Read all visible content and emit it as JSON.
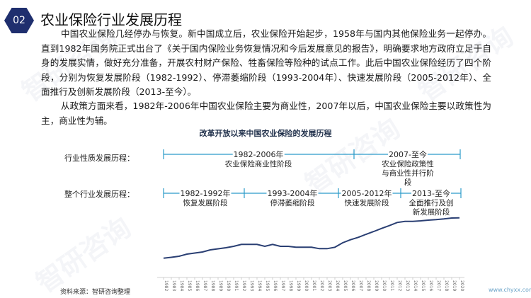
{
  "section_number": "02",
  "title": "农业保险行业发展历程",
  "paragraphs": [
    "中国农业保险几经停办与恢复。新中国成立后，农业保险开始起步，1958年与国内其他保险业务一起停办。直到1982年国务院正式出台了《关于国内保险业务恢复情况和今后发展意见的报告》，明确要求地方政府立足于自身的发展实情，做好充分准备，开展农村财产保险、牲畜保险等险种的试点工作。此后中国农业保险经历了四个阶段，分别为恢复发展阶段（1982-1992）、停滞萎缩阶段（1993-2004年）、快速发展阶段（2005-2012年）、全面推行及创新发展阶段（2013-至今）。",
    "从政策方面来看，1982年-2006年中国农业保险主要为商业性，2007年以后，中国农业保险主要以政策性为主，商业性为辅。"
  ],
  "timeline": {
    "nature_label": "行业性质发展历程：",
    "nature_stages": [
      {
        "period": "1982-2006年",
        "name": "农业保险商业性阶段"
      },
      {
        "period": "2007-至今",
        "name": "农业保险政策性与商业性并行阶段"
      }
    ],
    "industry_label": "整个行业发展历程：",
    "industry_stages": [
      {
        "period": "1982-1992年",
        "name": "恢复发展阶段"
      },
      {
        "period": "1993-2004年",
        "name": "停滞萎缩阶段"
      },
      {
        "period": "2005-2012年",
        "name": "快速发展阶段"
      },
      {
        "period": "2013-至今",
        "name": "全面推行及创新发展阶段"
      }
    ]
  },
  "colors": {
    "accent": "#1f2f6e",
    "timeline": "#2b9bc9",
    "line": "#2a3f73"
  },
  "chart_data": {
    "type": "line",
    "title": "改革开放以来中国农业保险的发展历程",
    "xlabel": "",
    "ylabel": "",
    "grid": false,
    "y_axis_shown": false,
    "x": [
      1982,
      1983,
      1984,
      1985,
      1986,
      1987,
      1988,
      1989,
      1990,
      1991,
      1992,
      1993,
      1994,
      1995,
      1996,
      1997,
      1998,
      1999,
      2000,
      2001,
      2002,
      2003,
      2004,
      2005,
      2006,
      2007,
      2008,
      2009,
      2010,
      2011,
      2012,
      2013,
      2014,
      2015,
      2016,
      2017,
      2018,
      2019,
      2020
    ],
    "values": [
      27.3,
      28.5,
      30,
      33,
      34.5,
      36,
      39,
      40.5,
      42,
      44,
      46.7,
      46.7,
      46.7,
      44,
      46.7,
      44,
      44,
      42.7,
      42.7,
      42.7,
      40.7,
      40.7,
      42.7,
      49,
      53.3,
      56.7,
      61,
      65,
      69.3,
      73.3,
      77.7,
      79.3,
      79.3,
      80,
      81,
      81.7,
      82.7,
      84,
      84.3
    ]
  },
  "footer": {
    "source": "资料来源：智研咨询整理",
    "url": "www.chyxx.com"
  },
  "watermark": "智研咨询"
}
